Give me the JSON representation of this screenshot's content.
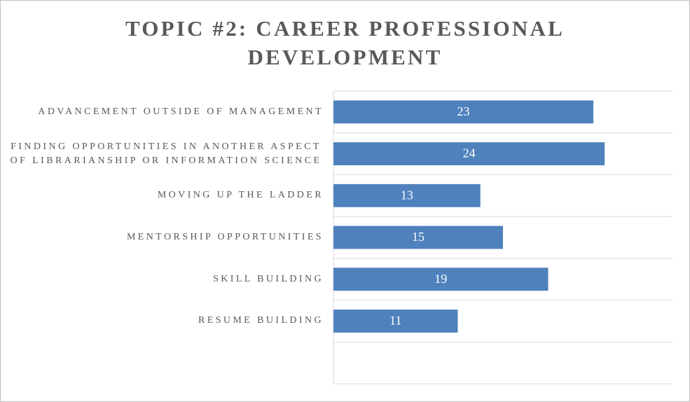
{
  "chart_data": {
    "type": "hbar",
    "title": "TOPIC #2: CAREER PROFESSIONAL DEVELOPMENT",
    "categories": [
      "ADVANCEMENT OUTSIDE OF MANAGEMENT",
      "FINDING OPPORTUNITIES IN ANOTHER ASPECT OF LIBRARIANSHIP OR INFORMATION SCIENCE",
      "MOVING UP THE LADDER",
      "MENTORSHIP OPPORTUNITIES",
      "SKILL BUILDING",
      "RESUME BUILDING",
      null
    ],
    "values": [
      23,
      24,
      13,
      15,
      19,
      11,
      null
    ],
    "color": "#4f81bd",
    "xlim": [
      0,
      30
    ]
  }
}
